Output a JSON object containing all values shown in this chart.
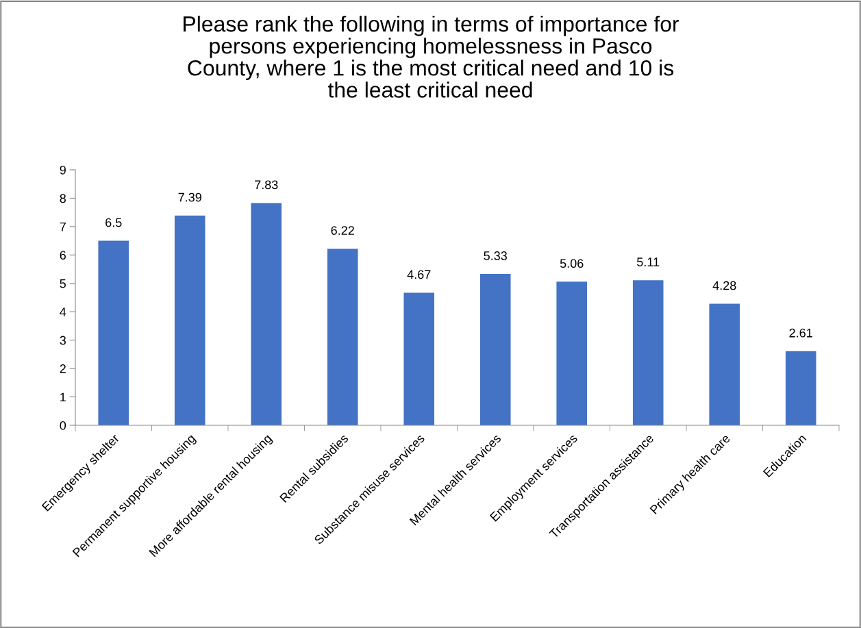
{
  "chart_data": {
    "type": "bar",
    "title": "Please rank the following in terms of importance for persons experiencing homelessness in Pasco County, where 1 is the most critical need and 10 is the least critical need",
    "categories": [
      "Emergency shelter",
      "Permanent supportive housing",
      "More affordable rental housing",
      "Rental subsidies",
      "Substance misuse services",
      "Mental health services",
      "Employment services",
      "Transportation assistance",
      "Primary health care",
      "Education"
    ],
    "values": [
      6.5,
      7.39,
      7.83,
      6.22,
      4.67,
      5.33,
      5.06,
      5.11,
      4.28,
      2.61
    ],
    "color": "#4472c4",
    "ylim": [
      0,
      9
    ],
    "yticks": [
      0,
      1,
      2,
      3,
      4,
      5,
      6,
      7,
      8,
      9
    ],
    "grid": false,
    "data_labels": true
  }
}
